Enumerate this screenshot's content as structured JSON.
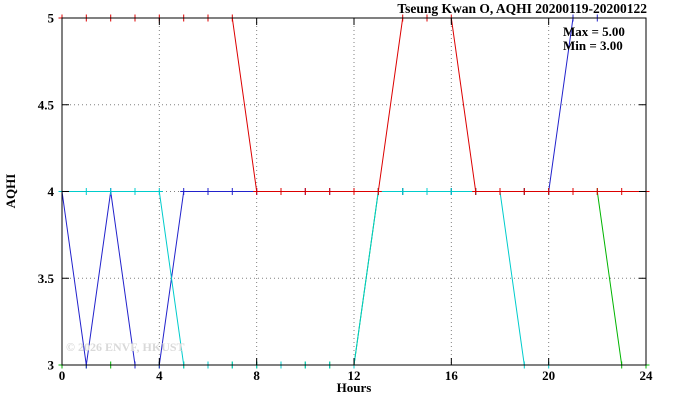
{
  "chart": {
    "title": "Tseung Kwan O, AQHI 20200119-20200122",
    "ylabel": "AQHI",
    "xlabel": "Hours",
    "annotation": {
      "max_label": "Max = 5.00",
      "min_label": "Min = 3.00"
    },
    "watermark": "© 2026 ENVF, HKUST"
  },
  "chart_data": {
    "type": "line",
    "title": "Tseung Kwan O, AQHI 20200119-20200122",
    "xlabel": "Hours",
    "ylabel": "AQHI",
    "xlim": [
      0,
      24
    ],
    "ylim": [
      3,
      5
    ],
    "xticks": [
      0,
      4,
      8,
      12,
      16,
      20,
      24
    ],
    "xtick_labels": [
      "0",
      "4",
      "8",
      "12",
      "16",
      "20",
      "24"
    ],
    "yticks": [
      3,
      3.5,
      4,
      4.5,
      5
    ],
    "ytick_labels": [
      "3",
      "3.5",
      "4",
      "4.5",
      "5"
    ],
    "grid": true,
    "grid_x": [
      4,
      8,
      12,
      16,
      20
    ],
    "grid_y": [
      3.5,
      4,
      4.5
    ],
    "marker": "plus",
    "legend": "none",
    "annotations": [
      "Max = 5.00",
      "Min = 3.00"
    ],
    "series": [
      {
        "name": "green",
        "color": "#00b400",
        "x": [
          0,
          1,
          2,
          3,
          4,
          5,
          6,
          7,
          8,
          9,
          10,
          11,
          12,
          13,
          14,
          15,
          16,
          17,
          18,
          19,
          20,
          21,
          22,
          23,
          24
        ],
        "values": [
          3,
          3,
          3,
          3,
          3,
          3,
          3,
          3,
          3,
          3,
          3,
          3,
          3,
          4,
          4,
          4,
          4,
          4,
          4,
          4,
          4,
          4,
          4,
          3,
          3
        ]
      },
      {
        "name": "blue",
        "color": "#2222cc",
        "x": [
          0,
          1,
          2,
          3,
          4,
          5,
          6,
          7,
          8,
          9,
          10,
          11,
          12,
          13,
          14,
          15,
          16,
          17,
          18,
          19,
          20,
          21,
          22
        ],
        "values": [
          4,
          3,
          4,
          3,
          3,
          4,
          4,
          4,
          4,
          4,
          4,
          4,
          4,
          4,
          4,
          4,
          4,
          4,
          4,
          4,
          4,
          5,
          5
        ]
      },
      {
        "name": "cyan",
        "color": "#00cccc",
        "x": [
          0,
          1,
          2,
          3,
          4,
          5,
          6,
          7,
          8,
          9,
          10,
          11,
          12,
          13,
          14,
          15,
          16,
          17,
          18,
          19,
          20
        ],
        "values": [
          4,
          4,
          4,
          4,
          4,
          3,
          3,
          3,
          3,
          3,
          3,
          3,
          3,
          4,
          4,
          4,
          4,
          4,
          4,
          3,
          3
        ]
      },
      {
        "name": "red",
        "color": "#dc0000",
        "x": [
          0,
          1,
          2,
          3,
          4,
          5,
          6,
          7,
          8,
          9,
          10,
          11,
          12,
          13,
          14,
          15,
          16,
          17,
          18,
          19,
          20,
          21,
          22,
          23,
          24
        ],
        "values": [
          5,
          5,
          5,
          5,
          5,
          5,
          5,
          5,
          4,
          4,
          4,
          4,
          4,
          4,
          5,
          5,
          5,
          4,
          4,
          4,
          4,
          4,
          4,
          4,
          4
        ]
      }
    ]
  }
}
